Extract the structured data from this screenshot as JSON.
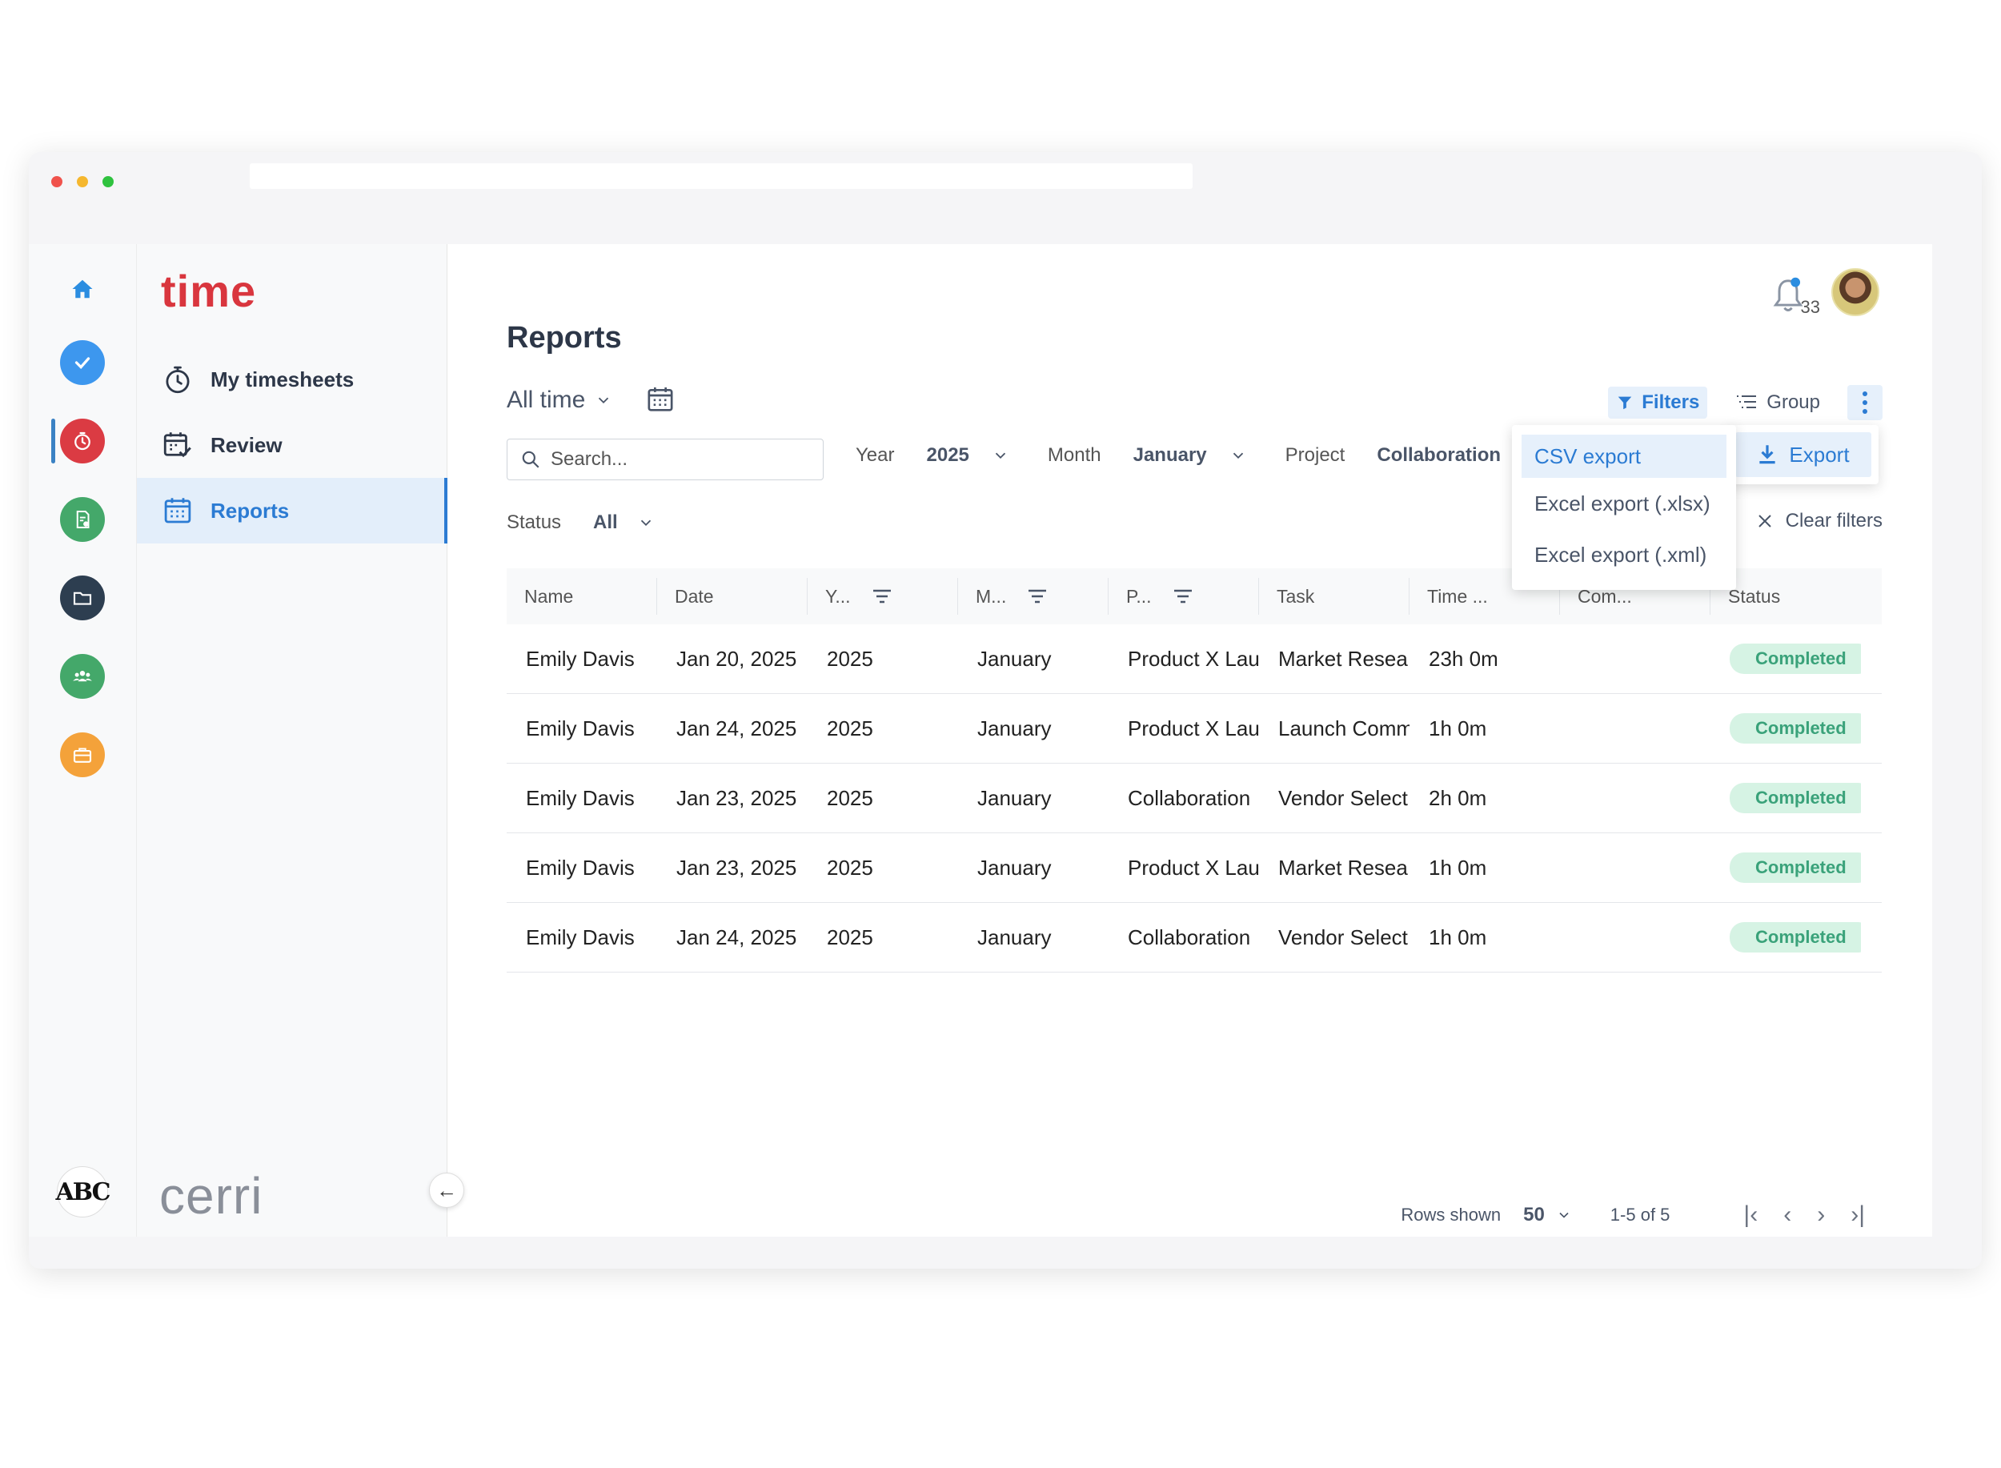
{
  "window": {
    "traffic_colors": [
      "#f0524c",
      "#f5b72f",
      "#2fc23f"
    ]
  },
  "app": {
    "logo": "time",
    "brand": "cerri",
    "accent": "#2b7bd3"
  },
  "rail": {
    "items": [
      {
        "name": "home-icon",
        "color": "#2b8de0"
      },
      {
        "name": "check-icon",
        "color": "#3d97ee"
      },
      {
        "name": "timer-icon",
        "color": "#db3b43"
      },
      {
        "name": "invoice-icon",
        "color": "#44a86a"
      },
      {
        "name": "folder-icon",
        "color": "#2d3e50"
      },
      {
        "name": "team-icon",
        "color": "#44a86a"
      },
      {
        "name": "briefcase-icon",
        "color": "#f4a23a"
      }
    ],
    "user_badge": "ABC"
  },
  "nav": {
    "items": [
      {
        "label": "My timesheets",
        "icon": "stopwatch-icon"
      },
      {
        "label": "Review",
        "icon": "calendar-check-icon"
      },
      {
        "label": "Reports",
        "icon": "calendar-grid-icon"
      }
    ]
  },
  "header": {
    "notifications": "33"
  },
  "page": {
    "title": "Reports",
    "range_label": "All time",
    "toolbar": {
      "filters": "Filters",
      "group": "Group"
    },
    "search_placeholder": "Search...",
    "filters": {
      "year_label": "Year",
      "year_value": "2025",
      "month_label": "Month",
      "month_value": "January",
      "project_label": "Project",
      "project_value": "Collaboration",
      "status_label": "Status",
      "status_value": "All",
      "clear": "Clear filters"
    },
    "export_menu": {
      "items": [
        "CSV export",
        "Excel export (.xlsx)",
        "Excel export (.xml)"
      ],
      "export_button": "Export"
    }
  },
  "table": {
    "columns": [
      "Name",
      "Date",
      "Y...",
      "M...",
      "P...",
      "Task",
      "Time ...",
      "Com...",
      "Status"
    ],
    "rows": [
      [
        "Emily Davis",
        "Jan 20, 2025",
        "2025",
        "January",
        "Product X Lau",
        "Market Resea",
        "23h 0m",
        "",
        "Completed"
      ],
      [
        "Emily Davis",
        "Jan 24, 2025",
        "2025",
        "January",
        "Product X Lau",
        "Launch Comm",
        "1h 0m",
        "",
        "Completed"
      ],
      [
        "Emily Davis",
        "Jan 23, 2025",
        "2025",
        "January",
        "Collaboration",
        "Vendor Select",
        "2h 0m",
        "",
        "Completed"
      ],
      [
        "Emily Davis",
        "Jan 23, 2025",
        "2025",
        "January",
        "Product X Lau",
        "Market Resea",
        "1h 0m",
        "",
        "Completed"
      ],
      [
        "Emily Davis",
        "Jan 24, 2025",
        "2025",
        "January",
        "Collaboration",
        "Vendor Select",
        "1h 0m",
        "",
        "Completed"
      ]
    ]
  },
  "pager": {
    "rows_label": "Rows shown",
    "rows_value": "50",
    "range": "1-5 of 5"
  }
}
